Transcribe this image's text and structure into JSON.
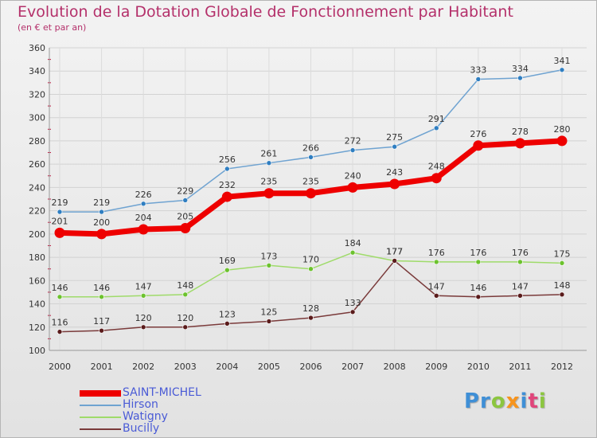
{
  "header": {
    "title": "Evolution de la Dotation Globale de Fonctionnement par Habitant",
    "subtitle": "(en € et par an)"
  },
  "logo": {
    "parts": [
      {
        "text": "Pr",
        "color": "#3f8fd6"
      },
      {
        "text": "o",
        "color": "#8cc63f"
      },
      {
        "text": "x",
        "color": "#f7941d"
      },
      {
        "text": "i",
        "color": "#3f8fd6"
      },
      {
        "text": "t",
        "color": "#e0457b"
      },
      {
        "text": "i",
        "color": "#8cc63f"
      }
    ]
  },
  "chart_data": {
    "type": "line",
    "title": "Evolution de la Dotation Globale de Fonctionnement par Habitant",
    "subtitle": "(en € et par an)",
    "xlabel": "",
    "ylabel": "",
    "ylim": [
      100,
      360
    ],
    "yticks": [
      100,
      120,
      140,
      160,
      180,
      200,
      220,
      240,
      260,
      280,
      300,
      320,
      340,
      360
    ],
    "categories": [
      "2000",
      "2001",
      "2002",
      "2003",
      "2004",
      "2005",
      "2006",
      "2007",
      "2008",
      "2009",
      "2010",
      "2011",
      "2012"
    ],
    "grid": true,
    "legend_position": "bottom-left",
    "series": [
      {
        "name": "Hirson",
        "color": "#6fa3d1",
        "marker": "#2f7ec1",
        "values": [
          219,
          219,
          226,
          229,
          256,
          261,
          266,
          272,
          275,
          291,
          333,
          334,
          341
        ]
      },
      {
        "name": "Watigny",
        "color": "#9fdb6a",
        "marker": "#6cc22e",
        "values": [
          146,
          146,
          147,
          148,
          169,
          173,
          170,
          184,
          177,
          176,
          176,
          176,
          175
        ]
      },
      {
        "name": "Bucilly",
        "color": "#7a3a3a",
        "marker": "#5a1b1b",
        "values": [
          116,
          117,
          120,
          120,
          123,
          125,
          128,
          133,
          177,
          147,
          146,
          147,
          148
        ]
      },
      {
        "name": "SAINT-MICHEL",
        "color": "#ee0000",
        "marker": "#ee0000",
        "values": [
          201,
          200,
          204,
          205,
          232,
          235,
          235,
          240,
          243,
          248,
          276,
          278,
          280
        ]
      }
    ]
  },
  "legend": {
    "items": [
      {
        "label": "SAINT-MICHEL",
        "color": "#ee0000",
        "text_color": "#4a5bd6"
      },
      {
        "label": "Hirson",
        "color": "#6fa3d1",
        "text_color": "#4a5bd6"
      },
      {
        "label": "Watigny",
        "color": "#9fdb6a",
        "text_color": "#4a5bd6"
      },
      {
        "label": "Bucilly",
        "color": "#7a3a3a",
        "text_color": "#4a5bd6"
      }
    ]
  }
}
